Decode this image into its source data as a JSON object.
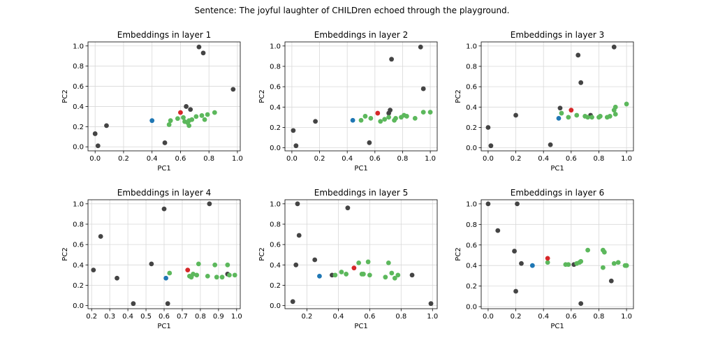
{
  "suptitle": "Sentence: The joyful laughter of CHILDren echoed through the playground.",
  "colors": {
    "context": "#444444",
    "generic": "#5cb85c",
    "target": "#d62728",
    "neutral": "#1f77b4",
    "grid": "#d8d8d8"
  },
  "chart_data": [
    {
      "type": "scatter",
      "title": "Embeddings in layer 1",
      "xlabel": "PC1",
      "ylabel": "PC2",
      "xlim": [
        -0.05,
        1.02
      ],
      "ylim": [
        -0.04,
        1.04
      ],
      "xticks": [
        0.0,
        0.2,
        0.4,
        0.6,
        0.8,
        1.0
      ],
      "yticks": [
        0.0,
        0.2,
        0.4,
        0.6,
        0.8,
        1.0
      ],
      "grid": true,
      "series": [
        {
          "color": "#444444",
          "points": [
            [
              0.0,
              0.13
            ],
            [
              0.02,
              0.01
            ],
            [
              0.08,
              0.21
            ],
            [
              0.49,
              0.04
            ],
            [
              0.64,
              0.4
            ],
            [
              0.67,
              0.37
            ],
            [
              0.73,
              0.99
            ],
            [
              0.76,
              0.93
            ],
            [
              0.97,
              0.57
            ]
          ]
        },
        {
          "color": "#5cb85c",
          "points": [
            [
              0.52,
              0.22
            ],
            [
              0.53,
              0.26
            ],
            [
              0.58,
              0.28
            ],
            [
              0.62,
              0.29
            ],
            [
              0.63,
              0.25
            ],
            [
              0.65,
              0.24
            ],
            [
              0.66,
              0.26
            ],
            [
              0.66,
              0.21
            ],
            [
              0.68,
              0.27
            ],
            [
              0.71,
              0.3
            ],
            [
              0.75,
              0.31
            ],
            [
              0.77,
              0.27
            ],
            [
              0.79,
              0.32
            ],
            [
              0.84,
              0.34
            ]
          ]
        },
        {
          "color": "#d62728",
          "points": [
            [
              0.6,
              0.34
            ]
          ]
        },
        {
          "color": "#1f77b4",
          "points": [
            [
              0.4,
              0.26
            ]
          ]
        }
      ]
    },
    {
      "type": "scatter",
      "title": "Embeddings in layer 2",
      "xlabel": "PC1",
      "ylabel": "PC2",
      "xlim": [
        -0.05,
        1.05
      ],
      "ylim": [
        -0.03,
        1.04
      ],
      "xticks": [
        0.0,
        0.2,
        0.4,
        0.6,
        0.8,
        1.0
      ],
      "yticks": [
        0.0,
        0.2,
        0.4,
        0.6,
        0.8,
        1.0
      ],
      "grid": true,
      "series": [
        {
          "color": "#444444",
          "points": [
            [
              0.01,
              0.17
            ],
            [
              0.03,
              0.02
            ],
            [
              0.17,
              0.26
            ],
            [
              0.56,
              0.05
            ],
            [
              0.7,
              0.34
            ],
            [
              0.71,
              0.37
            ],
            [
              0.72,
              0.87
            ],
            [
              0.93,
              0.99
            ],
            [
              0.95,
              0.58
            ]
          ]
        },
        {
          "color": "#5cb85c",
          "points": [
            [
              0.5,
              0.27
            ],
            [
              0.53,
              0.31
            ],
            [
              0.57,
              0.29
            ],
            [
              0.64,
              0.26
            ],
            [
              0.67,
              0.28
            ],
            [
              0.7,
              0.3
            ],
            [
              0.74,
              0.27
            ],
            [
              0.75,
              0.29
            ],
            [
              0.79,
              0.3
            ],
            [
              0.81,
              0.32
            ],
            [
              0.83,
              0.31
            ],
            [
              0.89,
              0.29
            ],
            [
              0.95,
              0.35
            ],
            [
              1.0,
              0.35
            ]
          ]
        },
        {
          "color": "#d62728",
          "points": [
            [
              0.62,
              0.34
            ]
          ]
        },
        {
          "color": "#1f77b4",
          "points": [
            [
              0.44,
              0.27
            ]
          ]
        }
      ]
    },
    {
      "type": "scatter",
      "title": "Embeddings in layer 3",
      "xlabel": "PC1",
      "ylabel": "PC2",
      "xlim": [
        -0.05,
        1.05
      ],
      "ylim": [
        -0.03,
        1.04
      ],
      "xticks": [
        0.0,
        0.2,
        0.4,
        0.6,
        0.8,
        1.0
      ],
      "yticks": [
        0.0,
        0.2,
        0.4,
        0.6,
        0.8,
        1.0
      ],
      "grid": true,
      "series": [
        {
          "color": "#444444",
          "points": [
            [
              0.0,
              0.2
            ],
            [
              0.02,
              0.02
            ],
            [
              0.2,
              0.32
            ],
            [
              0.45,
              0.03
            ],
            [
              0.52,
              0.39
            ],
            [
              0.65,
              0.91
            ],
            [
              0.67,
              0.64
            ],
            [
              0.74,
              0.32
            ],
            [
              0.91,
              0.99
            ]
          ]
        },
        {
          "color": "#5cb85c",
          "points": [
            [
              0.53,
              0.34
            ],
            [
              0.58,
              0.3
            ],
            [
              0.64,
              0.32
            ],
            [
              0.7,
              0.31
            ],
            [
              0.72,
              0.3
            ],
            [
              0.75,
              0.3
            ],
            [
              0.8,
              0.3
            ],
            [
              0.81,
              0.31
            ],
            [
              0.86,
              0.3
            ],
            [
              0.88,
              0.31
            ],
            [
              0.91,
              0.37
            ],
            [
              0.92,
              0.4
            ],
            [
              0.92,
              0.33
            ],
            [
              1.0,
              0.43
            ]
          ]
        },
        {
          "color": "#d62728",
          "points": [
            [
              0.6,
              0.37
            ]
          ]
        },
        {
          "color": "#1f77b4",
          "points": [
            [
              0.51,
              0.29
            ]
          ]
        }
      ]
    },
    {
      "type": "scatter",
      "title": "Embeddings in layer 4",
      "xlabel": "PC1",
      "ylabel": "PC2",
      "xlim": [
        0.18,
        1.02
      ],
      "ylim": [
        -0.03,
        1.04
      ],
      "xticks": [
        0.2,
        0.3,
        0.4,
        0.5,
        0.6,
        0.7,
        0.8,
        0.9,
        1.0
      ],
      "yticks": [
        0.0,
        0.2,
        0.4,
        0.6,
        0.8,
        1.0
      ],
      "grid": true,
      "series": [
        {
          "color": "#444444",
          "points": [
            [
              0.21,
              0.35
            ],
            [
              0.25,
              0.68
            ],
            [
              0.34,
              0.27
            ],
            [
              0.43,
              0.02
            ],
            [
              0.53,
              0.41
            ],
            [
              0.6,
              0.95
            ],
            [
              0.62,
              0.02
            ],
            [
              0.85,
              1.0
            ],
            [
              0.95,
              0.31
            ]
          ]
        },
        {
          "color": "#5cb85c",
          "points": [
            [
              0.63,
              0.32
            ],
            [
              0.74,
              0.29
            ],
            [
              0.75,
              0.28
            ],
            [
              0.76,
              0.31
            ],
            [
              0.78,
              0.3
            ],
            [
              0.79,
              0.41
            ],
            [
              0.84,
              0.29
            ],
            [
              0.88,
              0.4
            ],
            [
              0.89,
              0.28
            ],
            [
              0.92,
              0.28
            ],
            [
              0.95,
              0.4
            ],
            [
              0.96,
              0.3
            ],
            [
              0.99,
              0.3
            ]
          ]
        },
        {
          "color": "#d62728",
          "points": [
            [
              0.73,
              0.35
            ]
          ]
        },
        {
          "color": "#1f77b4",
          "points": [
            [
              0.61,
              0.27
            ]
          ]
        }
      ]
    },
    {
      "type": "scatter",
      "title": "Embeddings in layer 5",
      "xlabel": "PC1",
      "ylabel": "PC2",
      "xlim": [
        0.06,
        1.03
      ],
      "ylim": [
        -0.03,
        1.04
      ],
      "xticks": [
        0.2,
        0.4,
        0.6,
        0.8,
        1.0
      ],
      "yticks": [
        0.0,
        0.2,
        0.4,
        0.6,
        0.8,
        1.0
      ],
      "grid": true,
      "series": [
        {
          "color": "#444444",
          "points": [
            [
              0.11,
              0.04
            ],
            [
              0.13,
              0.4
            ],
            [
              0.14,
              1.0
            ],
            [
              0.15,
              0.69
            ],
            [
              0.25,
              0.45
            ],
            [
              0.36,
              0.3
            ],
            [
              0.46,
              0.96
            ],
            [
              0.87,
              0.3
            ],
            [
              0.99,
              0.02
            ]
          ]
        },
        {
          "color": "#5cb85c",
          "points": [
            [
              0.38,
              0.3
            ],
            [
              0.42,
              0.33
            ],
            [
              0.45,
              0.31
            ],
            [
              0.53,
              0.42
            ],
            [
              0.55,
              0.31
            ],
            [
              0.56,
              0.31
            ],
            [
              0.59,
              0.43
            ],
            [
              0.6,
              0.3
            ],
            [
              0.7,
              0.28
            ],
            [
              0.72,
              0.42
            ],
            [
              0.74,
              0.32
            ],
            [
              0.76,
              0.27
            ],
            [
              0.78,
              0.3
            ]
          ]
        },
        {
          "color": "#d62728",
          "points": [
            [
              0.5,
              0.37
            ]
          ]
        },
        {
          "color": "#1f77b4",
          "points": [
            [
              0.28,
              0.29
            ]
          ]
        }
      ]
    },
    {
      "type": "scatter",
      "title": "Embeddings in layer 6",
      "xlabel": "PC1",
      "ylabel": "PC2",
      "xlim": [
        -0.05,
        1.05
      ],
      "ylim": [
        -0.02,
        1.04
      ],
      "xticks": [
        0.0,
        0.2,
        0.4,
        0.6,
        0.8,
        1.0
      ],
      "yticks": [
        0.0,
        0.2,
        0.4,
        0.6,
        0.8,
        1.0
      ],
      "grid": true,
      "series": [
        {
          "color": "#444444",
          "points": [
            [
              0.0,
              1.0
            ],
            [
              0.07,
              0.74
            ],
            [
              0.19,
              0.54
            ],
            [
              0.2,
              0.15
            ],
            [
              0.21,
              1.0
            ],
            [
              0.24,
              0.42
            ],
            [
              0.62,
              0.41
            ],
            [
              0.67,
              0.03
            ],
            [
              0.89,
              0.25
            ]
          ]
        },
        {
          "color": "#5cb85c",
          "points": [
            [
              0.43,
              0.43
            ],
            [
              0.56,
              0.41
            ],
            [
              0.58,
              0.41
            ],
            [
              0.64,
              0.42
            ],
            [
              0.66,
              0.43
            ],
            [
              0.67,
              0.44
            ],
            [
              0.72,
              0.55
            ],
            [
              0.83,
              0.55
            ],
            [
              0.84,
              0.53
            ],
            [
              0.83,
              0.38
            ],
            [
              0.91,
              0.42
            ],
            [
              0.94,
              0.43
            ],
            [
              0.99,
              0.4
            ],
            [
              1.0,
              0.4
            ]
          ]
        },
        {
          "color": "#d62728",
          "points": [
            [
              0.43,
              0.47
            ]
          ]
        },
        {
          "color": "#1f77b4",
          "points": [
            [
              0.32,
              0.4
            ]
          ]
        }
      ]
    }
  ]
}
